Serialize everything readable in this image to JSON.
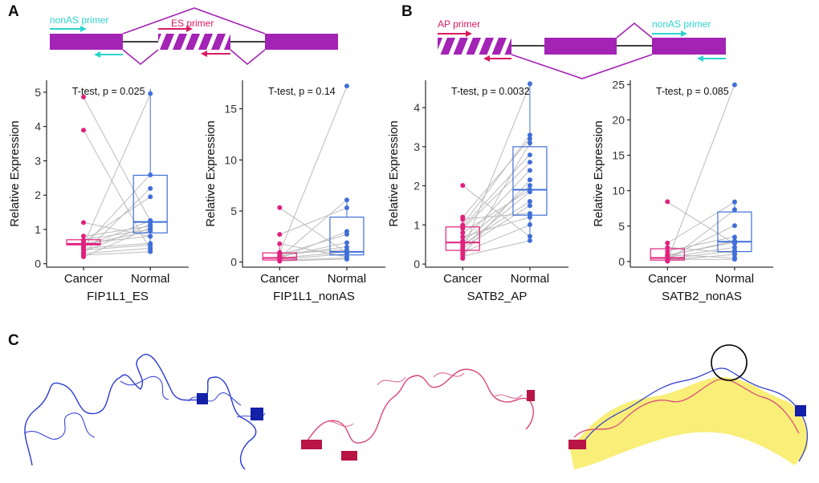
{
  "figure": {
    "panel_labels": {
      "a": "A",
      "b": "B",
      "c": "C"
    },
    "colors": {
      "exon": "#a323b5",
      "cyan_primer": "#2ed3cf",
      "magenta_primer": "#d81b60",
      "cancer": "#e0217e",
      "normal": "#3f6fd8",
      "pair_line": "#bbbbbb",
      "protein_blue": "#2233c4",
      "protein_pink": "#cf2f6a",
      "overlay_yellow": "#f7e84a"
    },
    "panel_a_gene_model": {
      "nonas_primer_label": "nonAS primer",
      "es_primer_label": "ES primer"
    },
    "panel_b_gene_model": {
      "ap_primer_label": "AP primer",
      "nonas_primer_label": "nonAS primer"
    },
    "panel_c": {
      "description_icons": [
        "protein-structure-nonAS",
        "protein-structure-AS",
        "protein-structure-overlay"
      ]
    }
  },
  "chart_data": [
    {
      "type": "box",
      "title": "T-test, p = 0.025",
      "xlabel": "FIP1L1_ES",
      "ylabel": "Relative Expression",
      "categories": [
        "Cancer",
        "Normal"
      ],
      "ylim": [
        -0.1,
        5.35
      ],
      "yticks": [
        0,
        1,
        2,
        3,
        4,
        5
      ],
      "box": {
        "Cancer": {
          "q1": 0.55,
          "median": 0.58,
          "q3": 0.7,
          "whisker_low": 0.2,
          "whisker_high": 0.85
        },
        "Normal": {
          "q1": 0.9,
          "median": 1.22,
          "q3": 2.58,
          "whisker_low": 0.35,
          "whisker_high": 5.1
        }
      },
      "pairs": [
        [
          0.55,
          4.95
        ],
        [
          0.2,
          1.05
        ],
        [
          0.35,
          1.15
        ],
        [
          0.5,
          1.25
        ],
        [
          0.55,
          0.95
        ],
        [
          0.6,
          0.8
        ],
        [
          0.7,
          1.0
        ],
        [
          0.3,
          0.45
        ],
        [
          0.25,
          0.35
        ],
        [
          0.4,
          0.55
        ],
        [
          0.45,
          0.6
        ],
        [
          0.8,
          1.1
        ],
        [
          1.2,
          0.8
        ],
        [
          3.9,
          0.4
        ],
        [
          4.85,
          1.25
        ],
        [
          0.65,
          1.95
        ],
        [
          0.3,
          2.2
        ],
        [
          0.5,
          2.6
        ]
      ]
    },
    {
      "type": "box",
      "title": "T-test, p = 0.14",
      "xlabel": "FIP1L1_nonAS",
      "ylabel": "Relative Expression",
      "categories": [
        "Cancer",
        "Normal"
      ],
      "ylim": [
        -0.5,
        17.8
      ],
      "yticks": [
        0,
        5,
        10,
        15
      ],
      "box": {
        "Cancer": {
          "q1": 0.2,
          "median": 0.4,
          "q3": 0.9,
          "whisker_low": 0.1,
          "whisker_high": 1.5
        },
        "Normal": {
          "q1": 0.7,
          "median": 1.0,
          "q3": 4.4,
          "whisker_low": 0.3,
          "whisker_high": 6.1
        }
      },
      "pairs": [
        [
          5.3,
          0.9
        ],
        [
          2.7,
          5.3
        ],
        [
          1.8,
          0.5
        ],
        [
          0.8,
          1.2
        ],
        [
          0.4,
          1.0
        ],
        [
          0.5,
          1.9
        ],
        [
          0.3,
          0.8
        ],
        [
          0.9,
          17.2
        ],
        [
          0.2,
          0.4
        ],
        [
          0.1,
          0.3
        ],
        [
          0.6,
          1.5
        ],
        [
          0.7,
          2.7
        ],
        [
          0.35,
          3.0
        ],
        [
          0.45,
          6.1
        ]
      ]
    },
    {
      "type": "box",
      "title": "T-test, p = 0.0032",
      "xlabel": "SATB2_AP",
      "ylabel": "Relative Expression",
      "categories": [
        "Cancer",
        "Normal"
      ],
      "ylim": [
        -0.08,
        4.7
      ],
      "yticks": [
        0,
        1,
        2,
        3,
        4
      ],
      "box": {
        "Cancer": {
          "q1": 0.35,
          "median": 0.55,
          "q3": 0.95,
          "whisker_low": 0.15,
          "whisker_high": 1.2
        },
        "Normal": {
          "q1": 1.25,
          "median": 1.9,
          "q3": 3.0,
          "whisker_low": 0.6,
          "whisker_high": 4.6
        }
      },
      "pairs": [
        [
          2.0,
          0.7
        ],
        [
          1.2,
          3.2
        ],
        [
          1.0,
          3.3
        ],
        [
          1.15,
          1.3
        ],
        [
          0.9,
          2.6
        ],
        [
          0.8,
          1.9
        ],
        [
          0.6,
          2.4
        ],
        [
          0.55,
          2.0
        ],
        [
          0.5,
          1.6
        ],
        [
          0.45,
          1.85
        ],
        [
          0.4,
          1.5
        ],
        [
          0.3,
          1.0
        ],
        [
          0.2,
          0.6
        ],
        [
          0.15,
          3.1
        ],
        [
          0.35,
          4.6
        ],
        [
          0.25,
          2.15
        ],
        [
          0.7,
          1.2
        ],
        [
          0.95,
          2.8
        ]
      ]
    },
    {
      "type": "box",
      "title": "T-test, p = 0.085",
      "xlabel": "SATB2_nonAS",
      "ylabel": "Relative Expression",
      "categories": [
        "Cancer",
        "Normal"
      ],
      "ylim": [
        -0.8,
        25.6
      ],
      "yticks": [
        0,
        5,
        10,
        15,
        20,
        25
      ],
      "box": {
        "Cancer": {
          "q1": 0.2,
          "median": 0.5,
          "q3": 1.8,
          "whisker_low": 0.05,
          "whisker_high": 2.6
        },
        "Normal": {
          "q1": 1.4,
          "median": 2.8,
          "q3": 7.0,
          "whisker_low": 0.3,
          "whisker_high": 8.4
        }
      },
      "pairs": [
        [
          8.4,
          2.5
        ],
        [
          2.6,
          8.4
        ],
        [
          2.0,
          1.2
        ],
        [
          1.5,
          3.5
        ],
        [
          1.0,
          0.5
        ],
        [
          0.8,
          2.9
        ],
        [
          0.5,
          5.1
        ],
        [
          0.4,
          1.5
        ],
        [
          0.3,
          0.3
        ],
        [
          0.2,
          1.0
        ],
        [
          0.1,
          25.0
        ],
        [
          0.05,
          7.3
        ],
        [
          0.6,
          2.0
        ],
        [
          0.9,
          2.7
        ]
      ]
    }
  ]
}
